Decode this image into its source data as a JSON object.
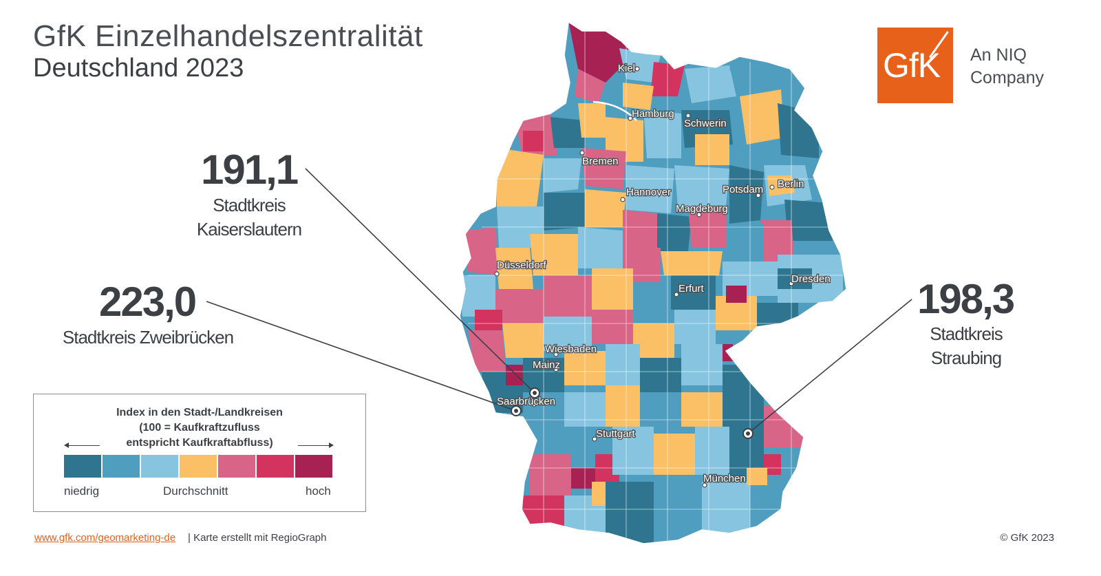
{
  "title": {
    "line1": "GfK Einzelhandelszentralität",
    "line2": "Deutschland 2023"
  },
  "logo": {
    "mark": "GfK",
    "tagline1": "An NIQ",
    "tagline2": "Company",
    "color": "#e8611a"
  },
  "callouts": [
    {
      "value": "191,1",
      "label1": "Stadtkreis",
      "label2": "Kaiserslautern"
    },
    {
      "value": "223,0",
      "label1": "Stadtkreis Zweibrücken",
      "label2": ""
    },
    {
      "value": "198,3",
      "label1": "Stadtkreis",
      "label2": "Straubing"
    }
  ],
  "legend": {
    "title1": "Index in den Stadt-/Landkreisen",
    "title2": "(100 = Kaufkraftzufluss",
    "title3": "entspricht Kaufkraftabfluss)",
    "low": "niedrig",
    "mid": "Durchschnitt",
    "high": "hoch",
    "colors": [
      "#2f7590",
      "#4f9ebf",
      "#87c4df",
      "#fbbf66",
      "#d86488",
      "#d3345f",
      "#a72253"
    ]
  },
  "cities": [
    "Kiel",
    "Hamburg",
    "Schwerin",
    "Bremen",
    "Hannover",
    "Potsdam",
    "Berlin",
    "Magdeburg",
    "Düsseldorf",
    "Dresden",
    "Erfurt",
    "Wiesbaden",
    "Mainz",
    "Saarbrücken",
    "Stuttgart",
    "München"
  ],
  "footer": {
    "link": "www.gfk.com/geomarketing-de",
    "rest": " | Karte erstellt mit RegioGraph",
    "copyright": "© GfK 2023"
  }
}
